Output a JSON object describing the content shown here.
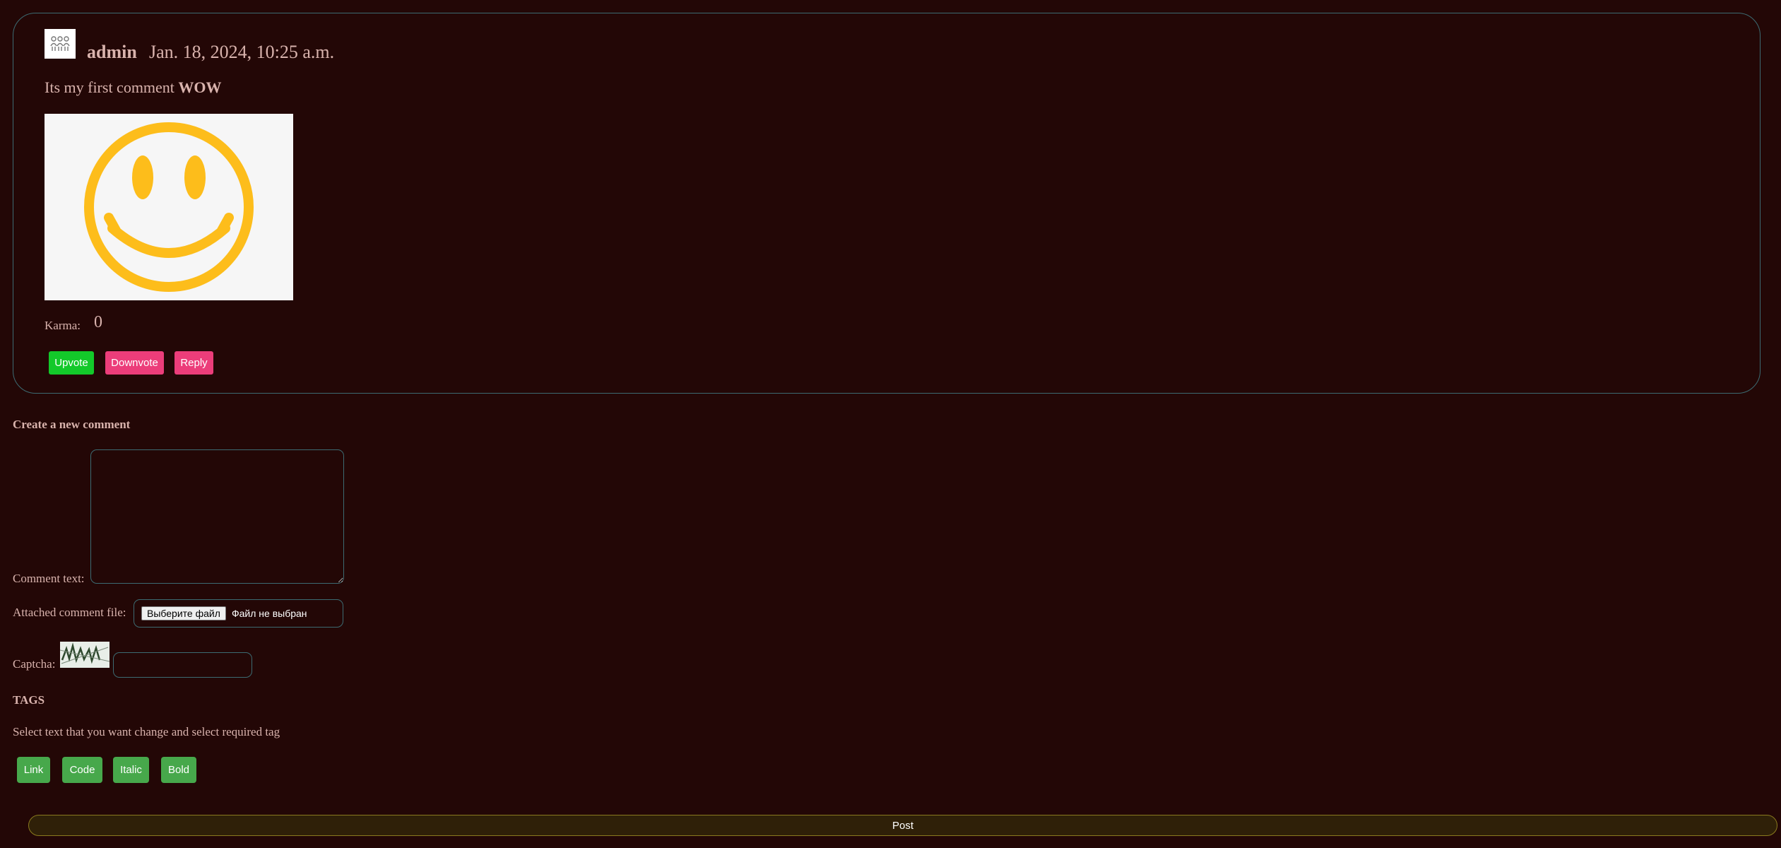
{
  "comment": {
    "author": "admin",
    "date": "Jan. 18, 2024, 10:25 a.m.",
    "text_plain": "Its my first comment ",
    "text_bold": "WOW",
    "karma_label": "Karma:",
    "karma_value": "0",
    "actions": {
      "upvote": "Upvote",
      "downvote": "Downvote",
      "reply": "Reply"
    },
    "icons": {
      "avatar": "user-group-avatar-icon",
      "image": "smiley-face-image"
    }
  },
  "form": {
    "title": "Create a new comment",
    "comment_text_label": "Comment text:",
    "comment_text_value": "",
    "file_label": "Attached comment file:",
    "file_button": "Выберите файл",
    "file_status": "Файл не выбран",
    "captcha_label": "Captcha:",
    "captcha_value": ""
  },
  "tags": {
    "title": "TAGS",
    "hint": "Select text that you want change and select required tag",
    "buttons": [
      "Link",
      "Code",
      "Italic",
      "Bold"
    ]
  },
  "post_label": "Post",
  "colors": {
    "background": "#230706",
    "text": "#d9b3ad",
    "card_border": "#3c6b72",
    "upvote": "#13c92a",
    "downvote_reply": "#ec3d7a",
    "tag_button": "#47a84b",
    "post_border": "#8a7a1e"
  }
}
